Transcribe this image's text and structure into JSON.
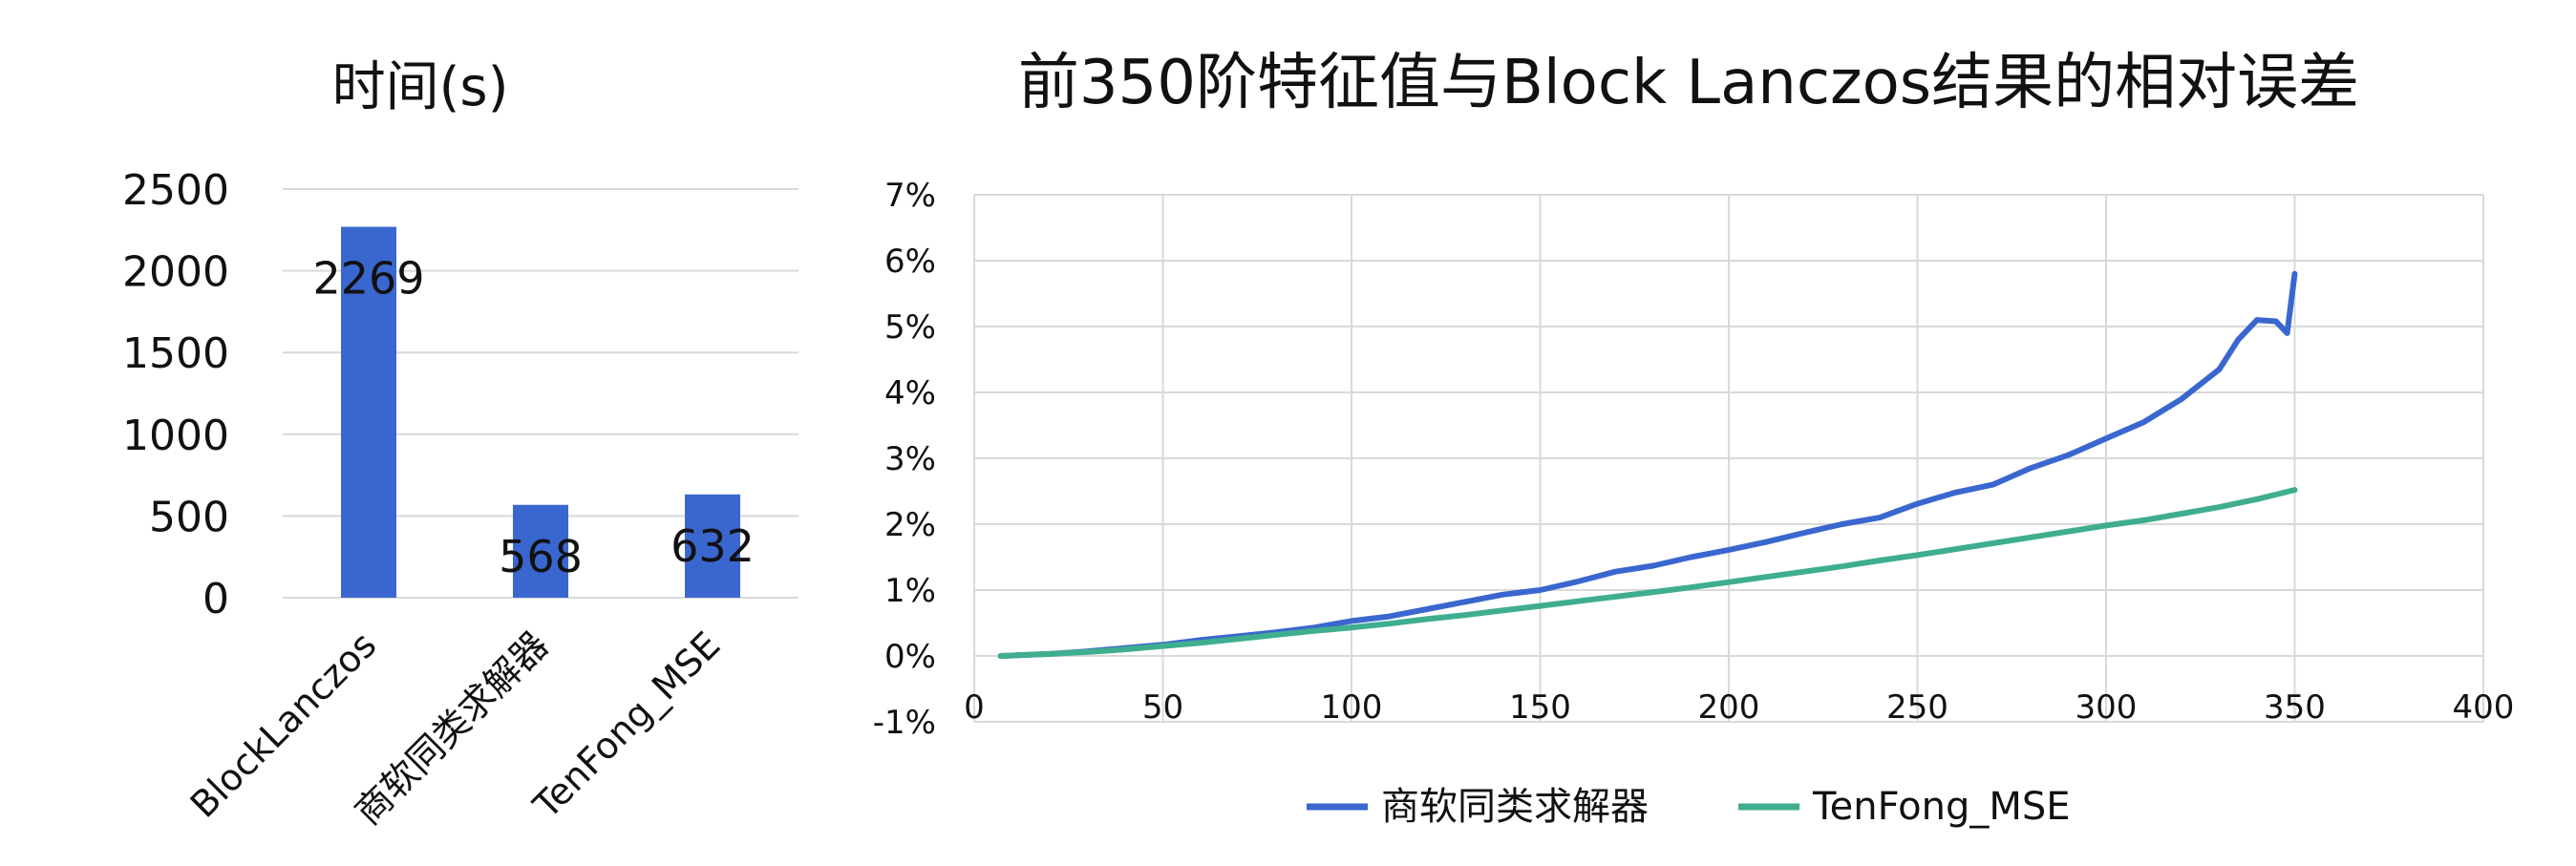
{
  "chart_data": [
    {
      "type": "bar",
      "title": "时间(s)",
      "categories": [
        "BlockLanczos",
        "商软同类求解器",
        "TenFong_MSE"
      ],
      "values": [
        2269,
        568,
        632
      ],
      "data_labels": [
        "2269",
        "568",
        "632"
      ],
      "yticks": [
        "0",
        "500",
        "1000",
        "1500",
        "2000",
        "2500"
      ],
      "ylim": [
        0,
        2500
      ],
      "bar_color": "#3a67cf",
      "grid": true,
      "legend": "none"
    },
    {
      "type": "line",
      "title": "前350阶特征值与Block Lanczos结果的相对误差",
      "xlim": [
        0,
        400
      ],
      "ylim": [
        -0.01,
        0.07
      ],
      "xticks": [
        "0",
        "50",
        "100",
        "150",
        "200",
        "250",
        "300",
        "350",
        "400"
      ],
      "yticks": [
        "-1%",
        "0%",
        "1%",
        "2%",
        "3%",
        "4%",
        "5%",
        "6%",
        "7%"
      ],
      "grid": true,
      "legend": "bottom",
      "series": [
        {
          "name": "商软同类求解器",
          "color": "#3a67cf",
          "x": [
            7,
            20,
            30,
            40,
            50,
            60,
            70,
            80,
            90,
            100,
            110,
            120,
            130,
            140,
            150,
            160,
            170,
            180,
            190,
            200,
            210,
            220,
            230,
            240,
            250,
            260,
            270,
            280,
            290,
            300,
            310,
            320,
            330,
            335,
            340,
            345,
            348,
            350
          ],
          "y": [
            0,
            0.0003,
            0.0007,
            0.0012,
            0.0017,
            0.0024,
            0.003,
            0.0036,
            0.0043,
            0.0053,
            0.006,
            0.0071,
            0.0082,
            0.0093,
            0.01,
            0.0113,
            0.0128,
            0.0137,
            0.015,
            0.0161,
            0.0173,
            0.0187,
            0.02,
            0.021,
            0.0231,
            0.0248,
            0.026,
            0.0285,
            0.0305,
            0.033,
            0.0355,
            0.039,
            0.0435,
            0.048,
            0.051,
            0.0508,
            0.049,
            0.058
          ]
        },
        {
          "name": "TenFong_MSE",
          "color": "#3fae8f",
          "x": [
            7,
            20,
            30,
            40,
            50,
            60,
            70,
            80,
            90,
            100,
            110,
            120,
            130,
            140,
            150,
            160,
            170,
            180,
            190,
            200,
            210,
            220,
            230,
            240,
            250,
            260,
            270,
            280,
            290,
            300,
            310,
            320,
            330,
            340,
            345,
            350
          ],
          "y": [
            0,
            0.0003,
            0.0006,
            0.001,
            0.0015,
            0.002,
            0.0026,
            0.0032,
            0.0038,
            0.0043,
            0.0049,
            0.0056,
            0.0062,
            0.0069,
            0.0076,
            0.0083,
            0.009,
            0.0097,
            0.0104,
            0.0112,
            0.012,
            0.0128,
            0.0136,
            0.0145,
            0.0153,
            0.0162,
            0.0171,
            0.018,
            0.0189,
            0.0198,
            0.0206,
            0.0216,
            0.0226,
            0.0238,
            0.0245,
            0.0252
          ]
        }
      ]
    }
  ]
}
